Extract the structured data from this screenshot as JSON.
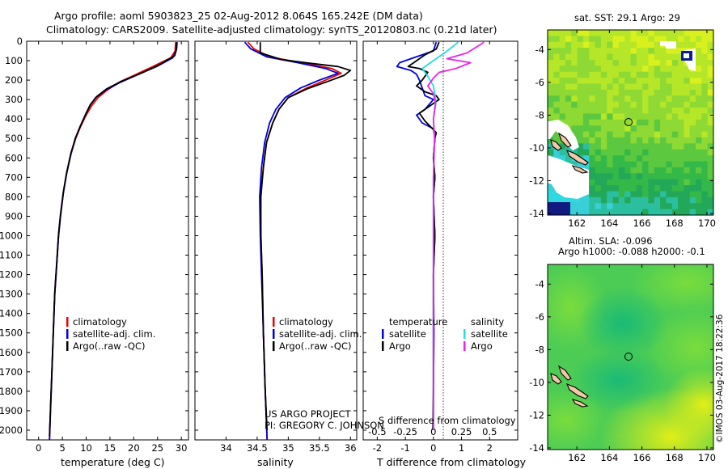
{
  "header": {
    "title_line1": "Argo profile: aoml 5903823_25 02-Aug-2012 8.064S 165.242E (DM data)",
    "title_line2": "Climatology: CARS2009. Satellite-adjusted climatology: synTS_20120803.nc (0.21d later)"
  },
  "map_sst": {
    "title": "sat. SST: 29.1  Argo: 29"
  },
  "map_sla": {
    "title_line1": "Altim. SLA: -0.096",
    "title_line2": "Argo h1000: -0.088 h2000: -0.1"
  },
  "credit": "©IMOS 03-Aug-2017 18:22:36",
  "project": {
    "line1": "US ARGO PROJECT",
    "line2": "PI: GREGORY C. JOHNSON"
  },
  "legend_profiles": [
    "climatology",
    "satellite-adj. clim.",
    "Argo(..raw -QC)"
  ],
  "legend_diff": {
    "temp_header": "temperature",
    "sal_header": "salinity",
    "satellite": "satellite",
    "argo": "Argo"
  },
  "colors": {
    "climatology": "#ee0000",
    "satellite": "#0000dd",
    "argo": "#000000",
    "sal_satellite": "#22dddd",
    "sal_argo": "#ee22ee"
  },
  "chart_data": [
    {
      "type": "line",
      "title": "",
      "xlabel": "temperature (deg C)",
      "ylabel": "depth",
      "xlim": [
        -2.5,
        31.5
      ],
      "ylim": [
        2050,
        0
      ],
      "y_inverted": true,
      "xticks": [
        0,
        5,
        10,
        15,
        20,
        25,
        30
      ],
      "yticks": [
        0,
        100,
        200,
        300,
        400,
        500,
        600,
        700,
        800,
        900,
        1000,
        1100,
        1200,
        1300,
        1400,
        1500,
        1600,
        1700,
        1800,
        1900,
        2000
      ],
      "series": [
        {
          "name": "climatology",
          "color": "#ee0000",
          "points": [
            [
              28.8,
              5
            ],
            [
              28.7,
              50
            ],
            [
              27.8,
              85
            ],
            [
              24.0,
              130
            ],
            [
              20.5,
              170
            ],
            [
              17.0,
              210
            ],
            [
              14.5,
              250
            ],
            [
              12.5,
              290
            ],
            [
              11.2,
              330
            ],
            [
              10.0,
              380
            ],
            [
              8.8,
              440
            ],
            [
              7.8,
              500
            ],
            [
              6.8,
              580
            ],
            [
              5.9,
              680
            ],
            [
              5.2,
              780
            ],
            [
              4.6,
              900
            ],
            [
              4.2,
              1000
            ],
            [
              3.8,
              1150
            ],
            [
              3.4,
              1300
            ],
            [
              3.1,
              1500
            ],
            [
              2.8,
              1700
            ],
            [
              2.5,
              1900
            ],
            [
              2.3,
              2050
            ]
          ]
        },
        {
          "name": "satellite-adj. clim.",
          "color": "#0000dd",
          "points": [
            [
              29.0,
              5
            ],
            [
              28.9,
              50
            ],
            [
              28.2,
              85
            ],
            [
              24.8,
              130
            ],
            [
              21.0,
              170
            ],
            [
              17.3,
              210
            ],
            [
              14.2,
              250
            ],
            [
              12.0,
              290
            ],
            [
              10.8,
              330
            ],
            [
              9.8,
              380
            ],
            [
              8.7,
              440
            ],
            [
              7.7,
              500
            ],
            [
              6.8,
              580
            ],
            [
              5.9,
              680
            ],
            [
              5.2,
              780
            ],
            [
              4.6,
              900
            ],
            [
              4.2,
              1000
            ],
            [
              3.8,
              1150
            ],
            [
              3.4,
              1300
            ],
            [
              3.1,
              1500
            ],
            [
              2.8,
              1700
            ],
            [
              2.5,
              1900
            ],
            [
              2.3,
              2050
            ]
          ]
        },
        {
          "name": "Argo(..raw -QC)",
          "color": "#000000",
          "points": [
            [
              29.1,
              5
            ],
            [
              29.0,
              40
            ],
            [
              28.6,
              75
            ],
            [
              25.0,
              125
            ],
            [
              21.5,
              165
            ],
            [
              17.5,
              205
            ],
            [
              14.3,
              245
            ],
            [
              12.2,
              285
            ],
            [
              10.9,
              325
            ],
            [
              9.9,
              375
            ],
            [
              8.8,
              435
            ],
            [
              7.8,
              495
            ],
            [
              6.8,
              575
            ],
            [
              5.9,
              675
            ],
            [
              5.2,
              775
            ],
            [
              4.6,
              890
            ],
            [
              4.2,
              990
            ],
            [
              3.8,
              1140
            ],
            [
              3.4,
              1290
            ],
            [
              3.1,
              1490
            ],
            [
              2.8,
              1690
            ],
            [
              2.5,
              1890
            ],
            [
              2.3,
              2030
            ]
          ]
        }
      ]
    },
    {
      "type": "line",
      "xlabel": "salinity",
      "ylabel": "depth",
      "xlim": [
        33.5,
        36.1
      ],
      "ylim": [
        2050,
        0
      ],
      "y_inverted": true,
      "xticks": [
        34,
        34.5,
        35,
        35.5,
        36
      ],
      "yticks": [
        0,
        100,
        200,
        300,
        400,
        500,
        600,
        700,
        800,
        900,
        1000,
        1100,
        1200,
        1300,
        1400,
        1500,
        1600,
        1700,
        1800,
        1900,
        2000
      ],
      "series": [
        {
          "name": "climatology",
          "color": "#ee0000",
          "points": [
            [
              34.35,
              5
            ],
            [
              34.45,
              40
            ],
            [
              34.7,
              80
            ],
            [
              35.2,
              110
            ],
            [
              35.7,
              140
            ],
            [
              35.85,
              165
            ],
            [
              35.6,
              200
            ],
            [
              35.3,
              240
            ],
            [
              35.0,
              290
            ],
            [
              34.85,
              350
            ],
            [
              34.75,
              420
            ],
            [
              34.65,
              520
            ],
            [
              34.6,
              650
            ],
            [
              34.55,
              800
            ],
            [
              34.56,
              1000
            ],
            [
              34.58,
              1200
            ],
            [
              34.6,
              1500
            ],
            [
              34.63,
              1800
            ],
            [
              34.66,
              2050
            ]
          ]
        },
        {
          "name": "satellite-adj. clim.",
          "color": "#0000dd",
          "points": [
            [
              34.3,
              5
            ],
            [
              34.4,
              40
            ],
            [
              34.65,
              80
            ],
            [
              35.15,
              110
            ],
            [
              35.6,
              140
            ],
            [
              35.8,
              165
            ],
            [
              35.5,
              200
            ],
            [
              35.2,
              240
            ],
            [
              34.95,
              290
            ],
            [
              34.8,
              350
            ],
            [
              34.7,
              420
            ],
            [
              34.62,
              520
            ],
            [
              34.57,
              650
            ],
            [
              34.54,
              800
            ],
            [
              34.55,
              1000
            ],
            [
              34.57,
              1200
            ],
            [
              34.6,
              1500
            ],
            [
              34.63,
              1800
            ],
            [
              34.66,
              2050
            ]
          ]
        },
        {
          "name": "Argo(..raw -QC)",
          "color": "#000000",
          "points": [
            [
              34.55,
              5
            ],
            [
              34.55,
              60
            ],
            [
              34.9,
              95
            ],
            [
              35.4,
              115
            ],
            [
              35.8,
              130
            ],
            [
              36.0,
              150
            ],
            [
              35.9,
              175
            ],
            [
              35.65,
              205
            ],
            [
              35.3,
              245
            ],
            [
              35.0,
              290
            ],
            [
              34.85,
              350
            ],
            [
              34.75,
              420
            ],
            [
              34.65,
              520
            ],
            [
              34.6,
              650
            ],
            [
              34.56,
              800
            ],
            [
              34.56,
              1000
            ],
            [
              34.58,
              1200
            ],
            [
              34.6,
              1500
            ],
            [
              34.63,
              1800
            ],
            [
              34.66,
              2000
            ]
          ]
        }
      ]
    },
    {
      "type": "line",
      "xlabel": "T difference from climatology",
      "xlabel_top": "S difference from climatology",
      "ylim": [
        2050,
        0
      ],
      "y_inverted": true,
      "T_xlim": [
        -2.5,
        3.0
      ],
      "T_xticks": [
        -2,
        -1,
        0,
        1,
        2
      ],
      "S_ticks": [
        -0.5,
        -0.25,
        0,
        0.25,
        0.5
      ],
      "S_tick_labels": [
        "-0.5",
        "-0.25",
        "0",
        "0.25",
        "0.5"
      ],
      "S_to_T_scale": 4,
      "series": [
        {
          "name": "temperature satellite",
          "color": "#0000dd",
          "axis": "T",
          "points": [
            [
              0.1,
              5
            ],
            [
              0.0,
              50
            ],
            [
              -0.8,
              90
            ],
            [
              -1.2,
              110
            ],
            [
              -1.3,
              130
            ],
            [
              -0.8,
              150
            ],
            [
              -0.6,
              170
            ],
            [
              -0.5,
              200
            ],
            [
              -0.4,
              240
            ],
            [
              -0.3,
              280
            ],
            [
              0.0,
              300
            ],
            [
              -0.3,
              350
            ],
            [
              -0.6,
              380
            ],
            [
              -0.4,
              420
            ],
            [
              0.0,
              450
            ],
            [
              0.05,
              500
            ],
            [
              0.0,
              600
            ],
            [
              0.05,
              700
            ],
            [
              0.0,
              800
            ],
            [
              0.05,
              1000
            ],
            [
              0.0,
              1200
            ],
            [
              0.02,
              1500
            ],
            [
              0.0,
              1800
            ],
            [
              0.0,
              2000
            ]
          ]
        },
        {
          "name": "temperature Argo",
          "color": "#000000",
          "axis": "T",
          "points": [
            [
              0.2,
              5
            ],
            [
              0.1,
              40
            ],
            [
              -0.3,
              70
            ],
            [
              -0.5,
              90
            ],
            [
              -0.7,
              110
            ],
            [
              -0.9,
              130
            ],
            [
              -0.5,
              140
            ],
            [
              -0.2,
              160
            ],
            [
              -0.3,
              180
            ],
            [
              -0.4,
              200
            ],
            [
              -0.6,
              230
            ],
            [
              -0.3,
              260
            ],
            [
              0.1,
              280
            ],
            [
              0.2,
              300
            ],
            [
              -0.2,
              340
            ],
            [
              -0.5,
              370
            ],
            [
              -0.3,
              410
            ],
            [
              -0.1,
              440
            ],
            [
              0.1,
              470
            ],
            [
              0.05,
              500
            ],
            [
              0.0,
              600
            ],
            [
              0.05,
              700
            ],
            [
              0.0,
              800
            ],
            [
              0.05,
              1000
            ],
            [
              0.0,
              1200
            ],
            [
              0.0,
              1500
            ],
            [
              0.0,
              1800
            ],
            [
              -0.02,
              2000
            ]
          ]
        },
        {
          "name": "salinity satellite",
          "color": "#22dddd",
          "axis": "S",
          "points": [
            [
              0.22,
              5
            ],
            [
              0.1,
              60
            ],
            [
              0.0,
              100
            ],
            [
              -0.1,
              140
            ],
            [
              -0.05,
              180
            ],
            [
              0.0,
              230
            ],
            [
              0.02,
              300
            ],
            [
              0.0,
              400
            ],
            [
              0.01,
              500
            ],
            [
              0.0,
              700
            ],
            [
              0.0,
              1000
            ],
            [
              0.0,
              1300
            ],
            [
              0.0,
              1600
            ],
            [
              0.0,
              2000
            ]
          ]
        },
        {
          "name": "salinity Argo",
          "color": "#ee22ee",
          "axis": "S",
          "points": [
            [
              0.45,
              5
            ],
            [
              0.3,
              60
            ],
            [
              0.12,
              90
            ],
            [
              0.33,
              110
            ],
            [
              0.2,
              140
            ],
            [
              0.05,
              160
            ],
            [
              0.0,
              190
            ],
            [
              -0.05,
              230
            ],
            [
              0.0,
              270
            ],
            [
              0.02,
              320
            ],
            [
              0.0,
              400
            ],
            [
              0.01,
              500
            ],
            [
              0.0,
              700
            ],
            [
              0.0,
              1000
            ],
            [
              0.0,
              1300
            ],
            [
              0.0,
              1600
            ],
            [
              0.0,
              2000
            ]
          ]
        }
      ]
    },
    {
      "type": "heatmap",
      "title": "sat. SST: 29.1  Argo: 29",
      "xlim": [
        160.2,
        170.4
      ],
      "ylim": [
        -14.1,
        -2.8
      ],
      "xticks": [
        162,
        164,
        166,
        168,
        170
      ],
      "yticks": [
        -4,
        -6,
        -8,
        -10,
        -12,
        -14
      ],
      "argo_position": [
        165.242,
        -8.064
      ]
    },
    {
      "type": "heatmap",
      "title": "Altim. SLA: -0.096",
      "subtitle": "Argo h1000: -0.088 h2000: -0.1",
      "xlim": [
        160.2,
        170.4
      ],
      "ylim": [
        -14.1,
        -2.8
      ],
      "xticks": [
        162,
        164,
        166,
        168,
        170
      ],
      "yticks": [
        -4,
        -6,
        -8,
        -10,
        -12,
        -14
      ],
      "argo_position": [
        165.242,
        -8.064
      ]
    }
  ]
}
